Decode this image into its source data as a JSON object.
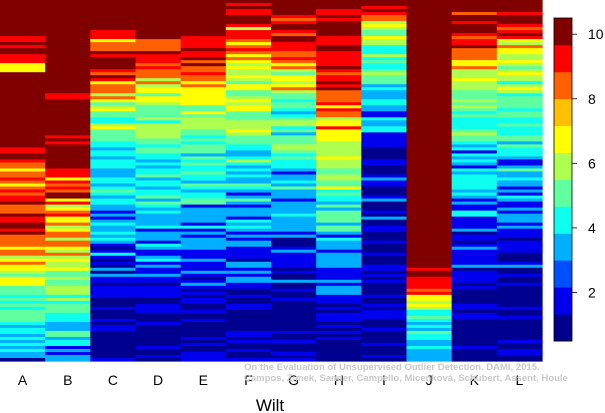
{
  "chart_data": {
    "type": "heatmap",
    "xlabel": "Wilt",
    "categories": [
      "A",
      "B",
      "C",
      "D",
      "E",
      "F",
      "G",
      "H",
      "I",
      "J",
      "K",
      "L"
    ],
    "colorbar": {
      "range": [
        0.5,
        10.5
      ],
      "ticks": [
        2,
        4,
        6,
        8,
        10
      ],
      "colors": [
        "#00008F",
        "#0000EF",
        "#0050FF",
        "#00AFFF",
        "#0FFFEF",
        "#60FF9F",
        "#AFFF50",
        "#FFFF00",
        "#FFC000",
        "#FF6000",
        "#FF0000",
        "#800000"
      ]
    },
    "columns": [
      {
        "name": "A",
        "profile": [
          10,
          10,
          10,
          10,
          10,
          10,
          9,
          10,
          10,
          9,
          6,
          10,
          10,
          10,
          10,
          10,
          10,
          10,
          10,
          10,
          10,
          10,
          10,
          9,
          9,
          8,
          8,
          9,
          8,
          8,
          9,
          8,
          9,
          9,
          10,
          9,
          9,
          8,
          7,
          7,
          8,
          6,
          7,
          6,
          5,
          5,
          4,
          4,
          5,
          4,
          4,
          3,
          3,
          3,
          2
        ]
      },
      {
        "name": "B",
        "profile": [
          10,
          10,
          10,
          10,
          10,
          10,
          10,
          10,
          10,
          10,
          10,
          10,
          10,
          10,
          9,
          10,
          10,
          10,
          10,
          10,
          10,
          9,
          10,
          10,
          10,
          10,
          9,
          8,
          8,
          9,
          8,
          7,
          8,
          7,
          7,
          8,
          7,
          7,
          7,
          6,
          6,
          6,
          5,
          6,
          5,
          5,
          5,
          5,
          4,
          4,
          4,
          3,
          3,
          3,
          2
        ]
      },
      {
        "name": "C",
        "profile": [
          10,
          10,
          10,
          10,
          9,
          10,
          7,
          8,
          9,
          10,
          10,
          9,
          8,
          7,
          7,
          6,
          6,
          5,
          5,
          6,
          5,
          4,
          3,
          4,
          4,
          4,
          3,
          4,
          3,
          4,
          3,
          4,
          3,
          3,
          3,
          3,
          3,
          2,
          3,
          2,
          2,
          2,
          2,
          2,
          1,
          1,
          1,
          1,
          2,
          1,
          1,
          1,
          1,
          1,
          1
        ]
      },
      {
        "name": "D",
        "profile": [
          10,
          10,
          10,
          10,
          10,
          10,
          9,
          8,
          9,
          9,
          8,
          7,
          7,
          7,
          6,
          6,
          6,
          5,
          5,
          5,
          5,
          5,
          5,
          4,
          4,
          4,
          4,
          4,
          4,
          4,
          4,
          3,
          3,
          3,
          3,
          3,
          3,
          3,
          3,
          3,
          2,
          2,
          2,
          2,
          2,
          1,
          2,
          2,
          1,
          2,
          1,
          1,
          1,
          1,
          1
        ]
      },
      {
        "name": "E",
        "profile": [
          10,
          10,
          10,
          10,
          10,
          10,
          9,
          9,
          10,
          9,
          9,
          8,
          8,
          7,
          7,
          7,
          6,
          6,
          6,
          5,
          5,
          5,
          5,
          4,
          5,
          4,
          4,
          4,
          4,
          4,
          4,
          3,
          3,
          3,
          3,
          3,
          3,
          3,
          2,
          2,
          2,
          2,
          2,
          2,
          1,
          1,
          1,
          1,
          1,
          1,
          1,
          1,
          1,
          1,
          1
        ]
      },
      {
        "name": "F",
        "profile": [
          10,
          9,
          10,
          10,
          7,
          10,
          8,
          9,
          8,
          7,
          7,
          7,
          6,
          6,
          5,
          7,
          6,
          6,
          5,
          5,
          6,
          5,
          4,
          4,
          5,
          4,
          4,
          4,
          4,
          3,
          4,
          3,
          3,
          3,
          3,
          2,
          3,
          2,
          3,
          2,
          2,
          2,
          2,
          2,
          1,
          1,
          2,
          1,
          1,
          1,
          1,
          1,
          1,
          1,
          1
        ]
      },
      {
        "name": "G",
        "profile": [
          10,
          10,
          10,
          9,
          10,
          9,
          10,
          8,
          9,
          8,
          7,
          6,
          6,
          7,
          5,
          5,
          4,
          4,
          6,
          5,
          4,
          4,
          5,
          4,
          4,
          4,
          3,
          3,
          4,
          3,
          3,
          3,
          3,
          2,
          3,
          2,
          2,
          2,
          2,
          2,
          2,
          1,
          2,
          1,
          1,
          1,
          1,
          1,
          1,
          1,
          1,
          1,
          1,
          1,
          1
        ]
      },
      {
        "name": "H",
        "profile": [
          10,
          10,
          9,
          10,
          10,
          10,
          9,
          10,
          9,
          9,
          10,
          8,
          10,
          9,
          9,
          8,
          8,
          7,
          7,
          8,
          7,
          7,
          6,
          7,
          6,
          6,
          5,
          5,
          6,
          5,
          4,
          4,
          5,
          4,
          4,
          3,
          3,
          4,
          3,
          3,
          3,
          2,
          3,
          2,
          2,
          2,
          2,
          1,
          2,
          1,
          1,
          1,
          1,
          1,
          1
        ]
      },
      {
        "name": "I",
        "profile": [
          9,
          10,
          9,
          7,
          6,
          5,
          7,
          4,
          5,
          4,
          3,
          6,
          4,
          3,
          3,
          4,
          3,
          2,
          3,
          4,
          3,
          2,
          2,
          1,
          2,
          2,
          1,
          3,
          2,
          1,
          2,
          1,
          1,
          2,
          1,
          1,
          2,
          1,
          1,
          1,
          1,
          1,
          1,
          1,
          1,
          1,
          1,
          1,
          1,
          1,
          1,
          1,
          1,
          1,
          1
        ]
      },
      {
        "name": "J",
        "profile": [
          10,
          10,
          10,
          10,
          10,
          10,
          10,
          10,
          10,
          10,
          10,
          10,
          10,
          10,
          10,
          10,
          10,
          10,
          10,
          10,
          10,
          10,
          10,
          10,
          10,
          10,
          10,
          10,
          10,
          10,
          10,
          10,
          10,
          10,
          10,
          10,
          10,
          10,
          10,
          10,
          10,
          9,
          10,
          9,
          8,
          7,
          6,
          5,
          4,
          3,
          5,
          3,
          4,
          3,
          2
        ]
      },
      {
        "name": "K",
        "profile": [
          10,
          10,
          9,
          10,
          9,
          10,
          8,
          9,
          8,
          7,
          8,
          6,
          7,
          6,
          5,
          6,
          5,
          5,
          4,
          4,
          5,
          4,
          4,
          3,
          4,
          3,
          3,
          3,
          4,
          3,
          3,
          2,
          3,
          2,
          3,
          2,
          2,
          2,
          2,
          1,
          2,
          1,
          2,
          1,
          1,
          1,
          1,
          1,
          1,
          1,
          1,
          1,
          1,
          1,
          1
        ]
      },
      {
        "name": "L",
        "profile": [
          10,
          10,
          9,
          10,
          8,
          9,
          7,
          8,
          6,
          7,
          6,
          6,
          5,
          6,
          5,
          5,
          4,
          5,
          4,
          4,
          5,
          4,
          4,
          4,
          3,
          4,
          3,
          3,
          3,
          3,
          3,
          2,
          3,
          2,
          2,
          2,
          2,
          2,
          2,
          1,
          2,
          1,
          1,
          1,
          1,
          1,
          1,
          1,
          1,
          1,
          1,
          1,
          1,
          1,
          1
        ]
      }
    ]
  },
  "credit": {
    "line1": "On the Evaluation of Unsupervised Outlier Detection. DAMI, 2015.",
    "line2": "Campos, Zimek, Sander, Campello, Micenková, Schubert, Assent, Houle"
  }
}
